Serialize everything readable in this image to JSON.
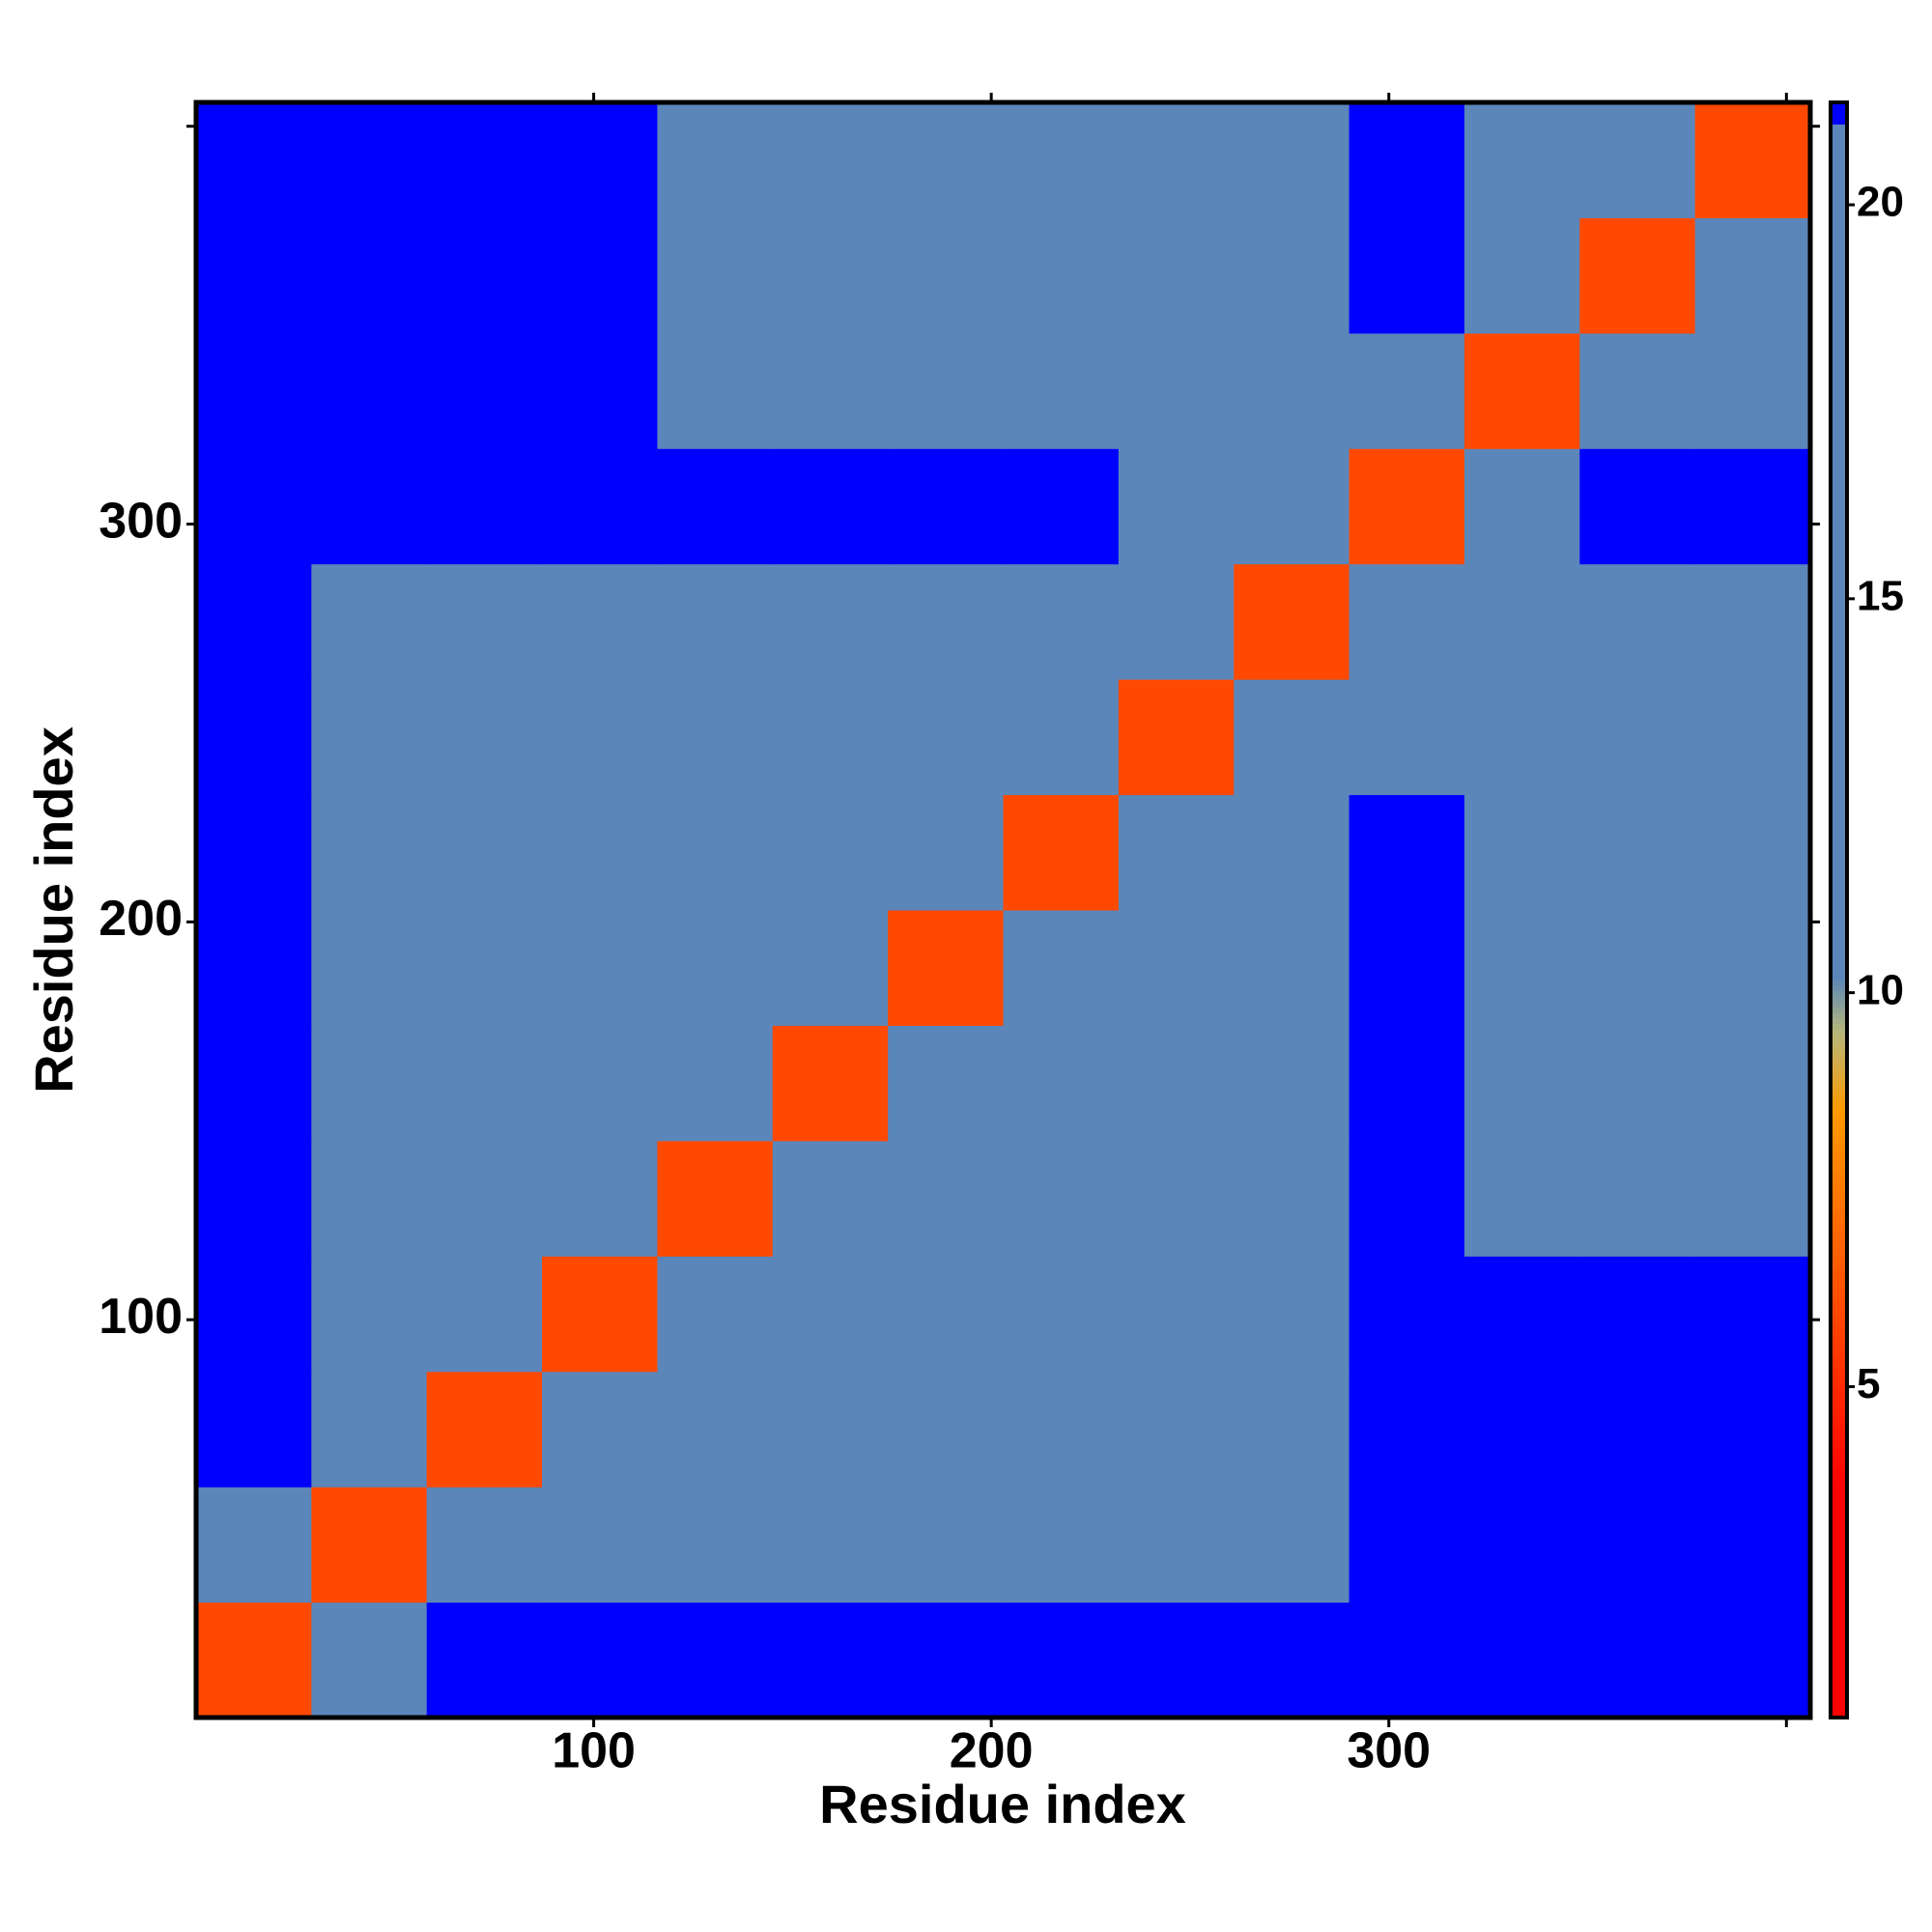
{
  "chart_data": {
    "type": "heatmap",
    "x_label": "Residue index",
    "y_label": "Residue index",
    "xlim": [
      0,
      406
    ],
    "ylim": [
      0,
      406
    ],
    "xticks": [
      100,
      200,
      300,
      {
        "value": 400,
        "label": null
      }
    ],
    "yticks": [
      100,
      200,
      300,
      {
        "value": 400,
        "label": null
      }
    ],
    "bins": [
      0,
      29,
      58,
      87,
      116,
      145,
      174,
      203,
      232,
      261,
      290,
      319,
      348,
      377,
      406
    ],
    "values": [
      [
        6,
        16,
        21.2,
        21.2,
        21.2,
        21.2,
        21.2,
        21.2,
        21.2,
        21.2,
        21.2,
        21.2,
        21.2,
        21.2
      ],
      [
        16,
        6,
        12,
        16,
        17,
        17,
        17,
        18,
        18,
        18,
        21.2,
        21.2,
        21.2,
        21.2
      ],
      [
        21.2,
        12,
        6,
        12,
        14,
        17,
        17,
        17,
        17,
        18,
        21.2,
        21.2,
        21.2,
        21.2
      ],
      [
        21.2,
        16,
        12,
        6,
        12,
        15,
        14,
        17,
        17,
        18,
        21.2,
        21.2,
        21.2,
        21.2
      ],
      [
        21.2,
        17,
        14,
        12,
        6,
        12,
        15,
        17,
        17,
        18,
        21.2,
        18,
        18,
        18
      ],
      [
        21.2,
        17,
        17,
        15,
        12,
        6,
        12,
        15,
        17,
        17,
        21.2,
        17,
        17,
        18
      ],
      [
        21.2,
        17,
        17,
        14,
        15,
        12,
        6,
        12,
        16,
        17,
        21.2,
        17,
        16,
        17
      ],
      [
        21.2,
        18,
        17,
        17,
        17,
        15,
        12,
        6,
        12,
        15,
        21.2,
        17,
        17,
        17
      ],
      [
        21.2,
        18,
        17,
        17,
        17,
        17,
        16,
        12,
        6,
        12,
        18,
        18,
        17,
        17
      ],
      [
        21.2,
        18,
        18,
        18,
        18,
        17,
        17,
        15,
        12,
        6,
        12,
        16,
        15,
        17
      ],
      [
        21.2,
        21.2,
        21.2,
        21.2,
        21.2,
        21.2,
        21.2,
        21.2,
        18,
        12,
        6,
        12,
        21.2,
        21.2
      ],
      [
        21.2,
        21.2,
        21.2,
        21.2,
        18,
        17,
        17,
        17,
        18,
        16,
        12,
        6,
        12,
        16
      ],
      [
        21.2,
        21.2,
        21.2,
        21.2,
        18,
        17,
        16,
        17,
        17,
        15,
        21.2,
        12,
        6,
        12
      ],
      [
        21.2,
        21.2,
        21.2,
        21.2,
        18,
        18,
        17,
        17,
        17,
        17,
        21.2,
        16,
        12,
        6
      ]
    ],
    "clim": [
      0.8,
      21.3
    ],
    "cticks": [
      5,
      10,
      15,
      20
    ],
    "colorscale": [
      [
        0.8,
        "#ff0000"
      ],
      [
        3.7,
        "#ff0000"
      ],
      [
        8.5,
        "#ff9900"
      ],
      [
        9.5,
        "#b7b77a"
      ],
      [
        10.2,
        "#5b86ba"
      ],
      [
        21,
        "#5b86ba"
      ],
      [
        21,
        "#0000ff"
      ],
      [
        21.3,
        "#0000ff"
      ]
    ]
  }
}
